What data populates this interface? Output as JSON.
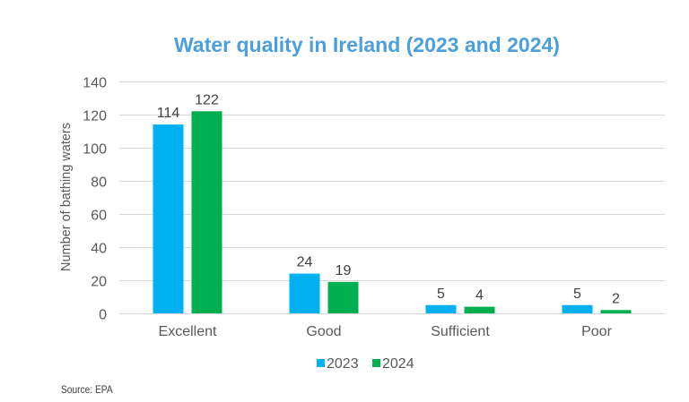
{
  "chart_data": {
    "type": "bar",
    "title": "Water quality in Ireland (2023 and 2024)",
    "xlabel": "",
    "ylabel": "Number of bathing waters",
    "categories": [
      "Excellent",
      "Good",
      "Sufficient",
      "Poor"
    ],
    "series": [
      {
        "name": "2023",
        "color": "#00B0F0",
        "values": [
          114,
          24,
          5,
          5
        ]
      },
      {
        "name": "2024",
        "color": "#00B050",
        "values": [
          122,
          19,
          4,
          2
        ]
      }
    ],
    "ylim": [
      0,
      140
    ],
    "yticks": [
      0,
      20,
      40,
      60,
      80,
      100,
      120,
      140
    ],
    "grid": true,
    "legend": "bottom-center",
    "data_labels": true
  },
  "source": "Source: EPA"
}
